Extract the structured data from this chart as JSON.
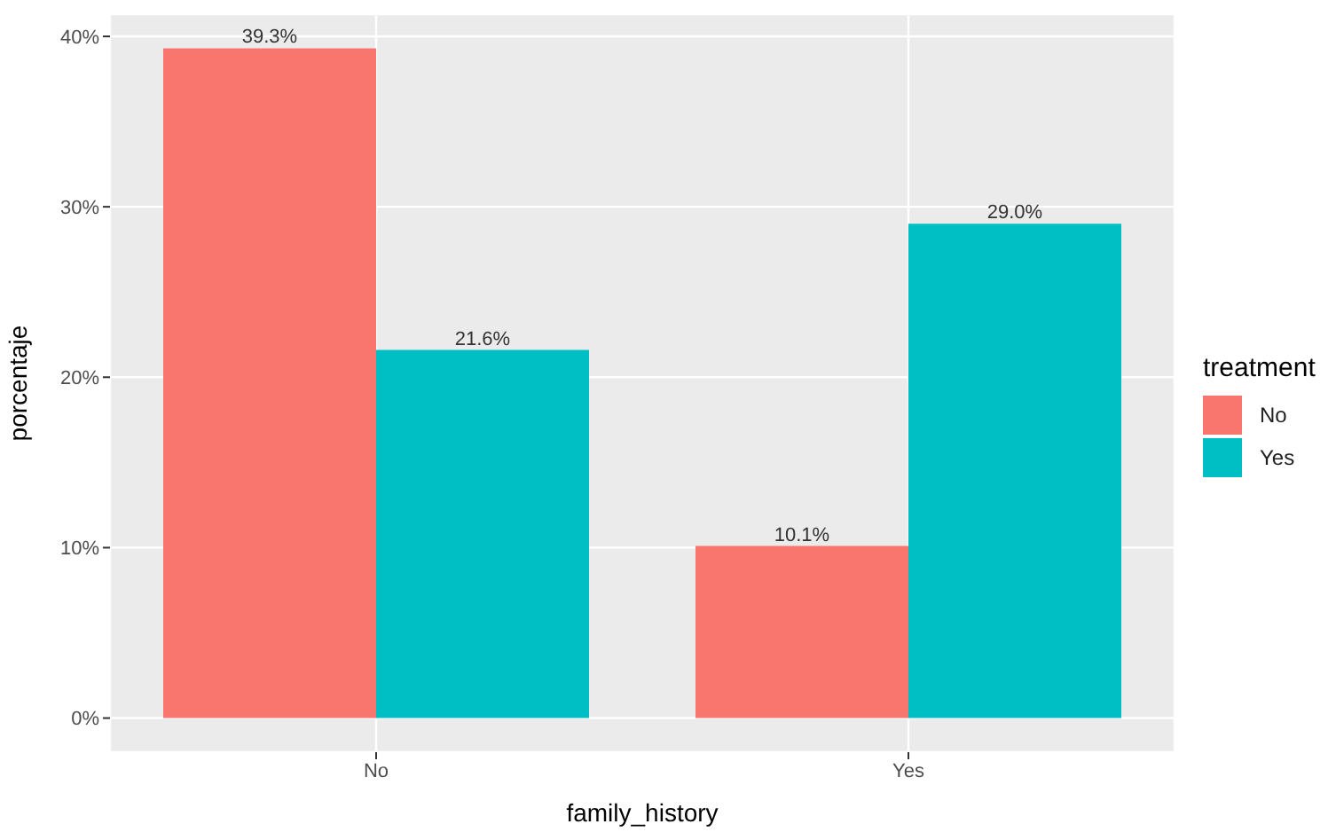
{
  "chart_data": {
    "type": "bar",
    "xlabel": "family_history",
    "ylabel": "porcentaje",
    "legend_title": "treatment",
    "categories": [
      "No",
      "Yes"
    ],
    "series": [
      {
        "name": "No",
        "color": "#f8766d",
        "values": [
          39.3,
          10.1
        ],
        "value_labels": [
          "39.3%",
          "10.1%"
        ]
      },
      {
        "name": "Yes",
        "color": "#00bfc4",
        "values": [
          21.6,
          29.0
        ],
        "value_labels": [
          "21.6%",
          "29.0%"
        ]
      }
    ],
    "ylim": [
      -2,
      41.3
    ],
    "yticks": [
      {
        "value": 0,
        "label": "0%"
      },
      {
        "value": 10,
        "label": "10%"
      },
      {
        "value": 20,
        "label": "20%"
      },
      {
        "value": 30,
        "label": "30%"
      },
      {
        "value": 40,
        "label": "40%"
      }
    ],
    "grid": true,
    "legend": "right"
  }
}
